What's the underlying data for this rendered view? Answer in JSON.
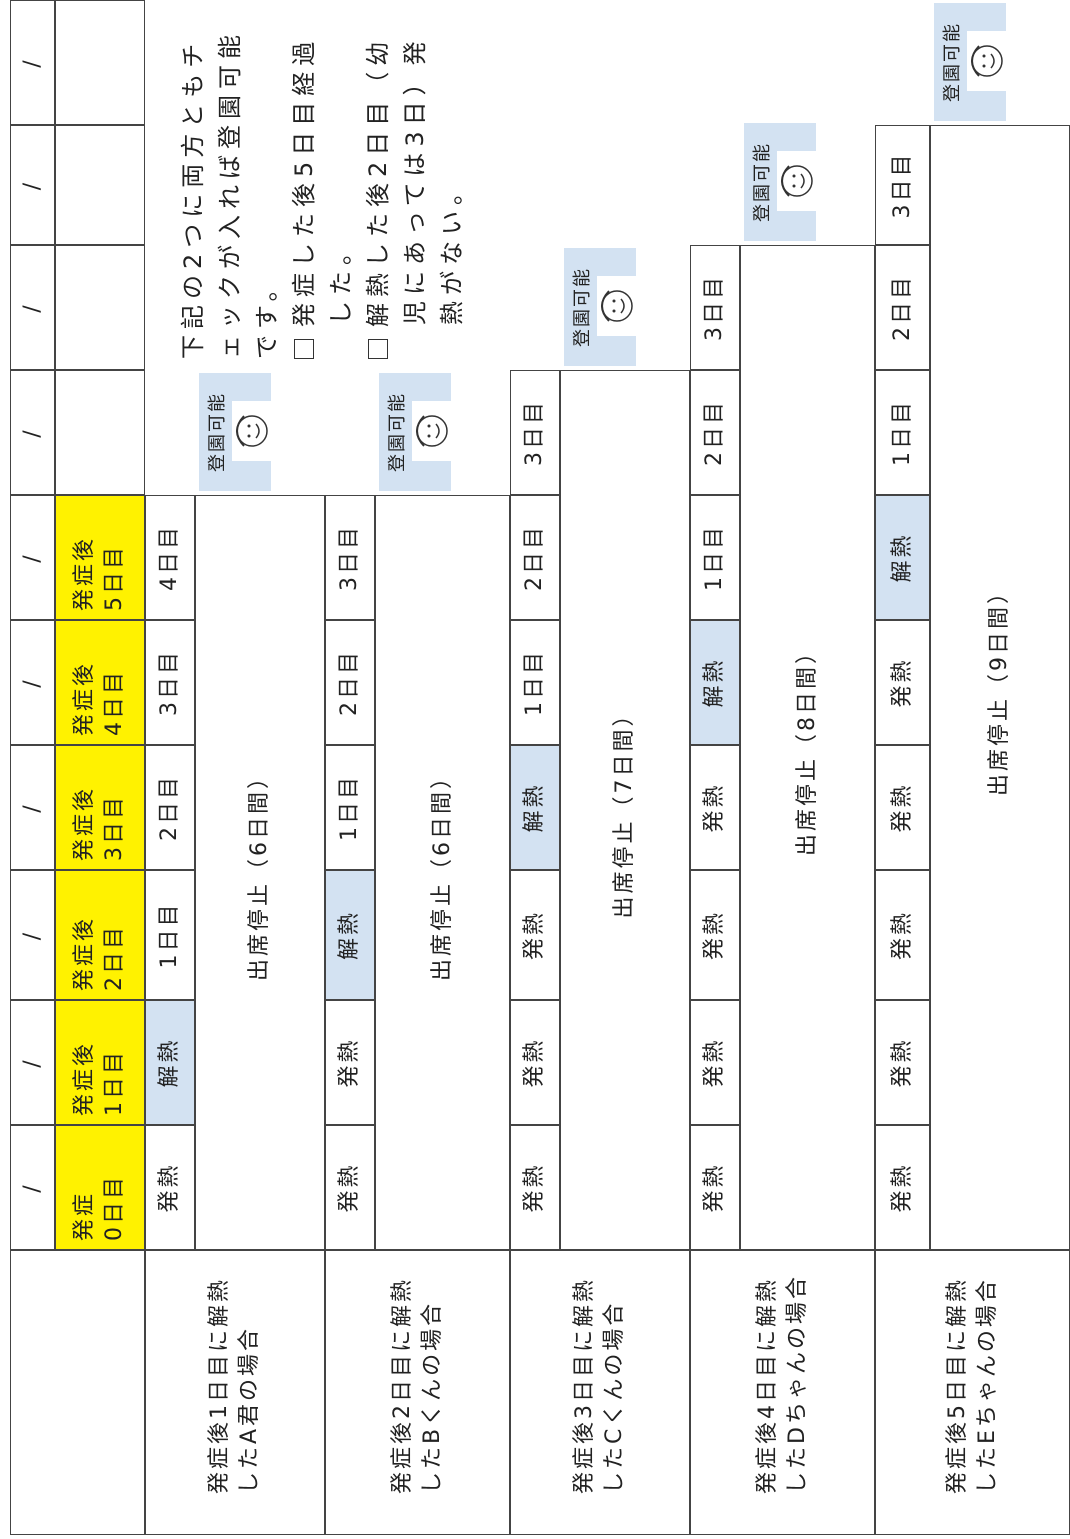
{
  "dates": [
    "/",
    "/",
    "/",
    "/",
    "/",
    "/",
    "/",
    "/",
    "/",
    "/"
  ],
  "days": [
    [
      "発症",
      "0日目"
    ],
    [
      "発症後",
      "1日目"
    ],
    [
      "発症後",
      "2日目"
    ],
    [
      "発症後",
      "3日目"
    ],
    [
      "発症後",
      "4日目"
    ],
    [
      "発症後",
      "5日目"
    ]
  ],
  "cases": [
    {
      "label": [
        "発症後1日目に解熱",
        "したA君の場合"
      ],
      "days": [
        "発熱",
        "解熱",
        "1日目",
        "2日目",
        "3日目",
        "4日目"
      ],
      "stop": "出席停止（6日間）",
      "ok": "登園可能"
    },
    {
      "label": [
        "発症後2日目に解熱",
        "したBくんの場合"
      ],
      "days": [
        "発熱",
        "発熱",
        "解熱",
        "1日目",
        "2日目",
        "3日目"
      ],
      "stop": "出席停止（6日間）",
      "ok": "登園可能"
    },
    {
      "label": [
        "発症後3日目に解熱",
        "したCくんの場合"
      ],
      "days": [
        "発熱",
        "発熱",
        "発熱",
        "解熱",
        "1日目",
        "2日目",
        "3日目"
      ],
      "stop": "出席停止（7日間）",
      "ok": "登園可能"
    },
    {
      "label": [
        "発症後4日目に解熱",
        "したDちゃんの場合"
      ],
      "days": [
        "発熱",
        "発熱",
        "発熱",
        "発熱",
        "解熱",
        "1日目",
        "2日目",
        "3日目"
      ],
      "stop": "出席停止（8日間）",
      "ok": "登園可能"
    },
    {
      "label": [
        "発症後5日目に解熱",
        "したEちゃんの場合"
      ],
      "days": [
        "発熱",
        "発熱",
        "発熱",
        "発熱",
        "発熱",
        "解熱",
        "1日目",
        "2日目",
        "3日目"
      ],
      "stop": "出席停止（9日間）",
      "ok": "登園可能"
    }
  ],
  "note": {
    "text": "下記の2つに両方ともチェックが入れば登園可能です。",
    "items": [
      "発症した後5日目経過した。",
      "解熱した後2日目（幼児にあっては3日）発熱がない。"
    ]
  }
}
